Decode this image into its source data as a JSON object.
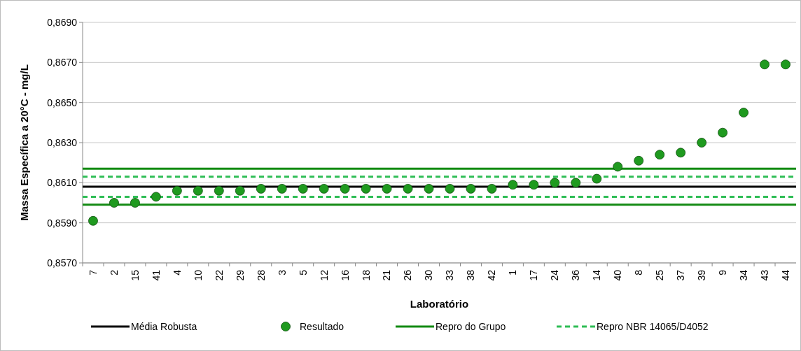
{
  "chart_data": {
    "type": "scatter",
    "xlabel": "Laboratório",
    "ylabel": "Massa Específica a 20°C - mg/L",
    "categories": [
      "7",
      "2",
      "15",
      "41",
      "4",
      "10",
      "22",
      "29",
      "28",
      "3",
      "5",
      "12",
      "16",
      "18",
      "21",
      "26",
      "30",
      "33",
      "38",
      "42",
      "1",
      "17",
      "24",
      "36",
      "14",
      "40",
      "8",
      "25",
      "37",
      "39",
      "9",
      "34",
      "43",
      "44"
    ],
    "series": [
      {
        "name": "Resultado",
        "color": "#1f9a1f",
        "values": [
          0.8591,
          0.86,
          0.86,
          0.8603,
          0.8606,
          0.8606,
          0.8606,
          0.8606,
          0.8607,
          0.8607,
          0.8607,
          0.8607,
          0.8607,
          0.8607,
          0.8607,
          0.8607,
          0.8607,
          0.8607,
          0.8607,
          0.8607,
          0.8609,
          0.8609,
          0.861,
          0.861,
          0.8612,
          0.8618,
          0.8621,
          0.8624,
          0.8625,
          0.863,
          0.8635,
          0.8645,
          0.8669,
          0.8669
        ]
      }
    ],
    "ylim": [
      0.857,
      0.869
    ],
    "yticks": [
      {
        "value": 0.857,
        "label": "0,8570"
      },
      {
        "value": 0.859,
        "label": "0,8590"
      },
      {
        "value": 0.861,
        "label": "0,8610"
      },
      {
        "value": 0.863,
        "label": "0,8630"
      },
      {
        "value": 0.865,
        "label": "0,8650"
      },
      {
        "value": 0.867,
        "label": "0,8670"
      },
      {
        "value": 0.869,
        "label": "0,8690"
      }
    ],
    "grid": "y",
    "marker": "circle",
    "legend": "bottom",
    "ref_lines": [
      {
        "axis": "y",
        "value": 0.8608,
        "label": "Média Robusta",
        "color": "#000000",
        "line_style": "solid"
      },
      {
        "axis": "y",
        "value": 0.8617,
        "label": "Repro do Grupo",
        "color": "#128a12",
        "line_style": "solid"
      },
      {
        "axis": "y",
        "value": 0.8599,
        "color": "#128a12",
        "line_style": "solid"
      },
      {
        "axis": "y",
        "value": 0.8613,
        "label": "Repro  NBR 14065/D4052",
        "color": "#2ebd55",
        "line_style": "dashed"
      },
      {
        "axis": "y",
        "value": 0.8603,
        "color": "#2ebd55",
        "line_style": "dashed"
      }
    ]
  }
}
